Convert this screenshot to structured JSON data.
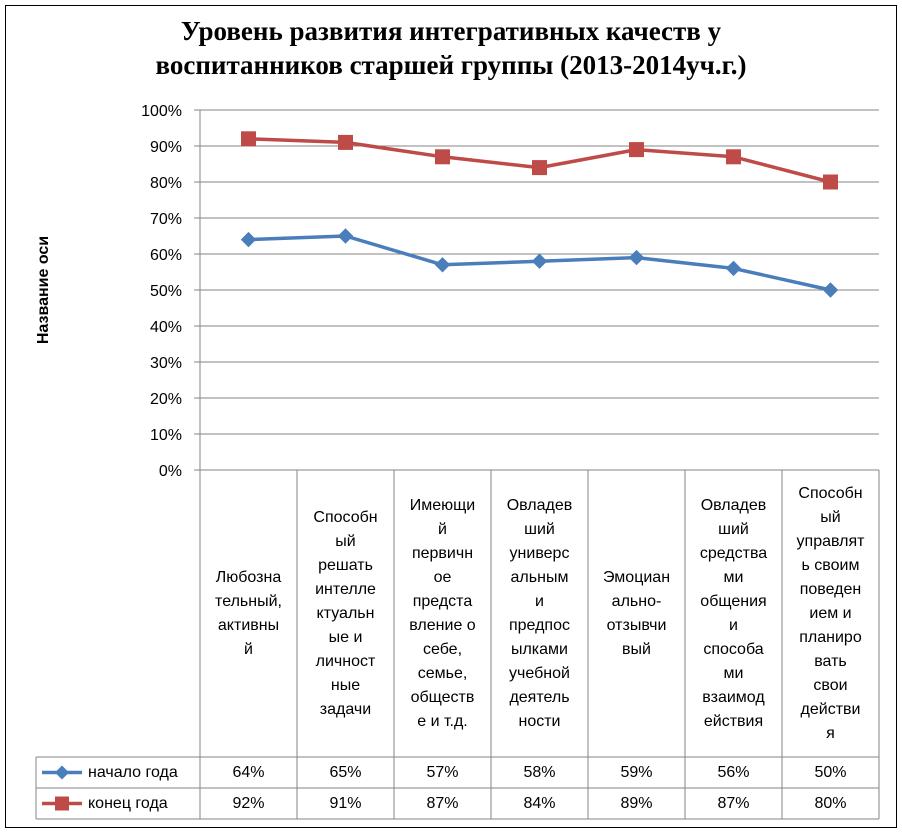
{
  "chart_data": {
    "type": "line",
    "title": "Уровень развития интегративных качеств у\nвоспитанников старшей группы (2013-2014уч.г.)",
    "ylabel": "Название оси",
    "xlabel": "",
    "ylim": [
      0,
      100
    ],
    "yticks": [
      "0%",
      "10%",
      "20%",
      "30%",
      "40%",
      "50%",
      "60%",
      "70%",
      "80%",
      "90%",
      "100%"
    ],
    "grid": true,
    "legend_placement": "bottom (data table)",
    "categories": [
      "Любознательный, активный",
      "Способный решать интеллектуальные и личностные задачи",
      "Имеющий первичное представление о себе, семье, обществе и т.д.",
      "Овладевший универсальным и предпосылками учебной деятельности",
      "Эмоционально-отзывчивый",
      "Овладевший средствами общения и способами взаимодействия",
      "Способный управлять своим поведением и планировать свои действия"
    ],
    "category_lines": [
      [
        "Любозна",
        "тельный,",
        "активны",
        "й"
      ],
      [
        "Способн",
        "ый",
        "решать",
        "интелле",
        "ктуальн",
        "ые и",
        "личност",
        "ные",
        "задачи"
      ],
      [
        "Имеющи",
        "й",
        "первичн",
        "ое",
        "предста",
        "вление о",
        "себе,",
        "семье,",
        "обществ",
        "е и т.д."
      ],
      [
        "Овладев",
        "ший",
        "универс",
        "альным",
        "и",
        "предпос",
        "ылками",
        "учебной",
        "деятель",
        "ности"
      ],
      [
        "Эмоциан",
        "ально-",
        "отзывчи",
        "вый"
      ],
      [
        "Овладев",
        "ший",
        "средства",
        "ми",
        "общения",
        "и",
        "способа",
        "ми",
        "взаимод",
        "ействия"
      ],
      [
        "Способн",
        "ый",
        "управлят",
        "ь своим",
        "поведен",
        "ием и",
        "планиро",
        "вать",
        "свои",
        "действи",
        "я"
      ]
    ],
    "series": [
      {
        "name": "начало года",
        "values": [
          64,
          65,
          57,
          58,
          59,
          56,
          50
        ],
        "labels": [
          "64%",
          "65%",
          "57%",
          "58%",
          "59%",
          "56%",
          "50%"
        ],
        "color": "#4a7ebb",
        "marker": "diamond"
      },
      {
        "name": "конец года",
        "values": [
          92,
          91,
          87,
          84,
          89,
          87,
          80
        ],
        "labels": [
          "92%",
          "91%",
          "87%",
          "84%",
          "89%",
          "87%",
          "80%"
        ],
        "color": "#be4b48",
        "marker": "square"
      }
    ]
  },
  "colors": {
    "grid": "#868686",
    "axis": "#868686",
    "text": "#000000"
  }
}
